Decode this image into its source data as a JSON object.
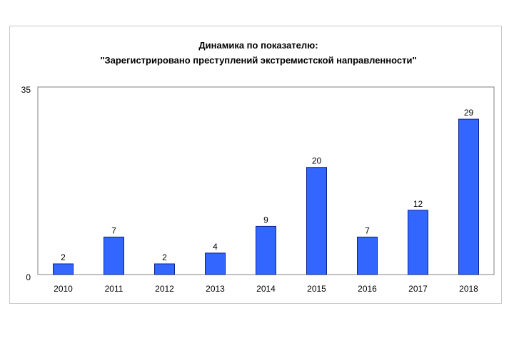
{
  "chart_data": {
    "type": "bar",
    "title": "Динамика по показателю:",
    "subtitle": "\"Зарегистрировано преступлений экстремистской направленности\"",
    "categories": [
      "2010",
      "2011",
      "2012",
      "2013",
      "2014",
      "2015",
      "2016",
      "2017",
      "2018"
    ],
    "values": [
      2,
      7,
      2,
      4,
      9,
      20,
      7,
      12,
      29
    ],
    "data_labels": [
      "2",
      "7",
      "2",
      "4",
      "9",
      "20",
      "7",
      "12",
      "29"
    ],
    "ylim": [
      0,
      35
    ],
    "y_tick_labels": [
      "0",
      "35"
    ],
    "xlabel": "",
    "ylabel": "",
    "grid": false,
    "legend": "none",
    "bar_color": "#3366ff",
    "bar_border_color": "#0d1f8c"
  }
}
